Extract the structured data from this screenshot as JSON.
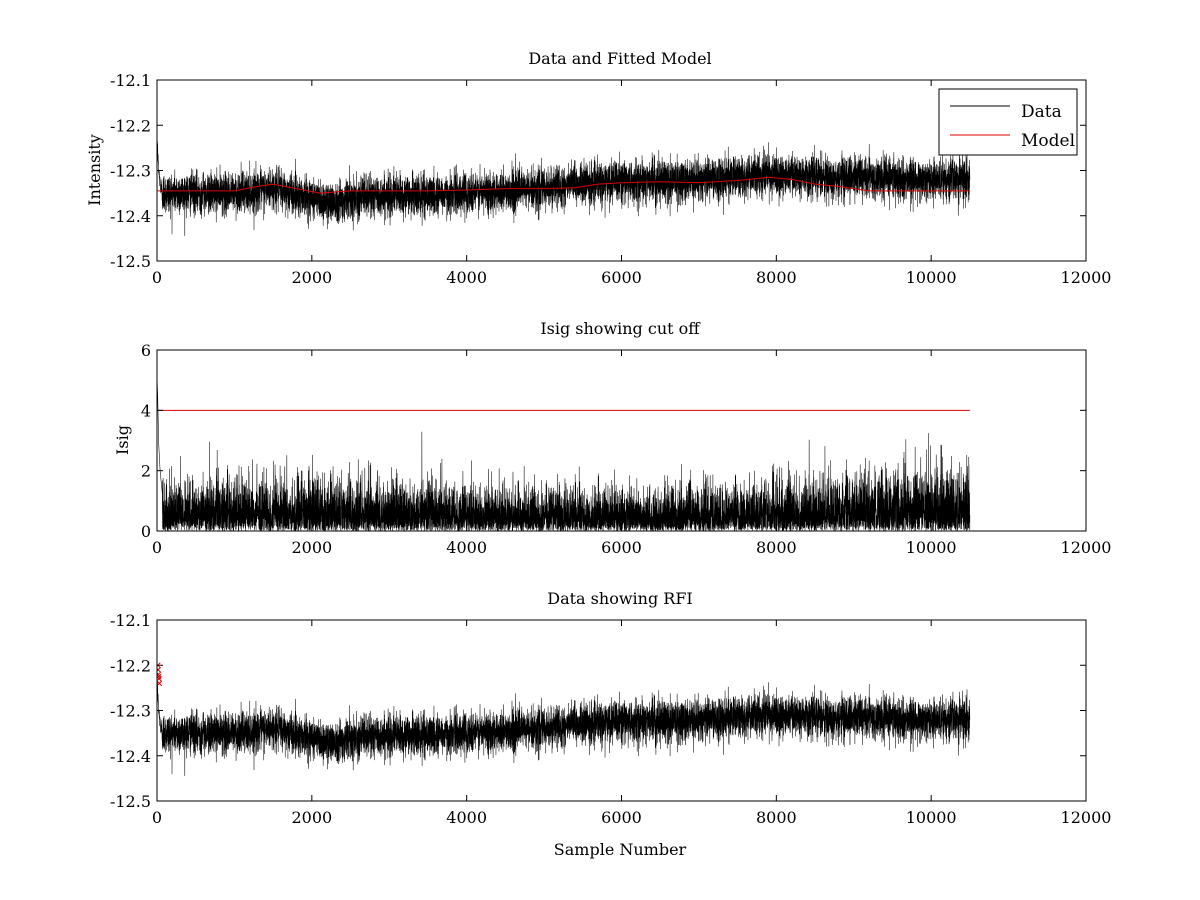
{
  "colors": {
    "data": "#000000",
    "model": "#dd0000",
    "cutoff": "#dd0000",
    "rfi": "#dd0000",
    "axes": "#000000",
    "background": "#ffffff"
  },
  "chart_data": [
    {
      "type": "line",
      "title": "Data and Fitted Model",
      "xlabel": "",
      "ylabel": "Intensity",
      "xlim": [
        0,
        12000
      ],
      "ylim": [
        -12.5,
        -12.1
      ],
      "xticks": [
        0,
        2000,
        4000,
        6000,
        8000,
        10000,
        12000
      ],
      "xtick_labels": [
        "0",
        "2000",
        "4000",
        "6000",
        "8000",
        "10000",
        "12000"
      ],
      "yticks": [
        -12.5,
        -12.4,
        -12.3,
        -12.2,
        -12.1
      ],
      "ytick_labels": [
        "-12.5",
        "-12.4",
        "-12.3",
        "-12.2",
        "-12.1"
      ],
      "grid": false,
      "legend": {
        "position": "top-right",
        "entries": [
          "Data",
          "Model"
        ]
      },
      "series": [
        {
          "name": "Data",
          "kind": "noise",
          "n": 10500,
          "x_range": [
            0,
            10500
          ],
          "trend_x": [
            0,
            20,
            60,
            100,
            500,
            1000,
            1500,
            2000,
            2200,
            2500,
            3000,
            3500,
            4000,
            4500,
            5000,
            5500,
            6000,
            7000,
            8000,
            9000,
            10000,
            10500
          ],
          "trend_y": [
            -12.22,
            -12.3,
            -12.35,
            -12.35,
            -12.35,
            -12.35,
            -12.34,
            -12.36,
            -12.37,
            -12.36,
            -12.355,
            -12.355,
            -12.35,
            -12.345,
            -12.34,
            -12.33,
            -12.325,
            -12.32,
            -12.31,
            -12.315,
            -12.32,
            -12.32
          ],
          "noise_amp": 0.03
        },
        {
          "name": "Model",
          "kind": "line",
          "x": [
            0,
            500,
            1000,
            1300,
            1500,
            1800,
            2100,
            2500,
            3000,
            3500,
            4000,
            4500,
            5000,
            5400,
            5700,
            6000,
            6500,
            7000,
            7500,
            7900,
            8200,
            8500,
            8800,
            9200,
            9600,
            10000,
            10500
          ],
          "y": [
            -12.345,
            -12.345,
            -12.345,
            -12.335,
            -12.33,
            -12.34,
            -12.35,
            -12.345,
            -12.345,
            -12.345,
            -12.343,
            -12.34,
            -12.34,
            -12.338,
            -12.33,
            -12.327,
            -12.325,
            -12.327,
            -12.322,
            -12.315,
            -12.32,
            -12.33,
            -12.335,
            -12.345,
            -12.345,
            -12.345,
            -12.345
          ]
        }
      ]
    },
    {
      "type": "line",
      "title": "Isig showing cut off",
      "xlabel": "",
      "ylabel": "Isig",
      "xlim": [
        0,
        12000
      ],
      "ylim": [
        0,
        6
      ],
      "xticks": [
        0,
        2000,
        4000,
        6000,
        8000,
        10000,
        12000
      ],
      "xtick_labels": [
        "0",
        "2000",
        "4000",
        "6000",
        "8000",
        "10000",
        "12000"
      ],
      "yticks": [
        0,
        2,
        4,
        6
      ],
      "ytick_labels": [
        "0",
        "2",
        "4",
        "6"
      ],
      "grid": false,
      "series": [
        {
          "kind": "abs-noise",
          "n": 10500,
          "x_range": [
            0,
            10500
          ],
          "spike_x": [
            0,
            10,
            20,
            40,
            70
          ],
          "spike_y": [
            5.2,
            4.4,
            3.0,
            2.0,
            1.2
          ],
          "scale_x": [
            0,
            2000,
            4000,
            6000,
            8000,
            9000,
            10000,
            10500
          ],
          "scale_y": [
            0.75,
            0.85,
            0.7,
            0.65,
            0.7,
            0.85,
            0.95,
            1.0
          ]
        },
        {
          "kind": "cutoff",
          "x": [
            0,
            10500
          ],
          "y": [
            4,
            4
          ]
        }
      ]
    },
    {
      "type": "line",
      "title": "Data showing RFI",
      "xlabel": "Sample Number",
      "ylabel": "",
      "xlim": [
        0,
        12000
      ],
      "ylim": [
        -12.5,
        -12.1
      ],
      "xticks": [
        0,
        2000,
        4000,
        6000,
        8000,
        10000,
        12000
      ],
      "xtick_labels": [
        "0",
        "2000",
        "4000",
        "6000",
        "8000",
        "10000",
        "12000"
      ],
      "yticks": [
        -12.5,
        -12.4,
        -12.3,
        -12.2,
        -12.1
      ],
      "ytick_labels": [
        "-12.5",
        "-12.4",
        "-12.3",
        "-12.2",
        "-12.1"
      ],
      "grid": false,
      "series": [
        {
          "kind": "noise-same-as-panel-1"
        },
        {
          "kind": "rfi-markers",
          "x": [
            10,
            14,
            18,
            22,
            26,
            30
          ],
          "y": [
            -12.2,
            -12.21,
            -12.22,
            -12.225,
            -12.23,
            -12.24
          ]
        }
      ]
    }
  ]
}
